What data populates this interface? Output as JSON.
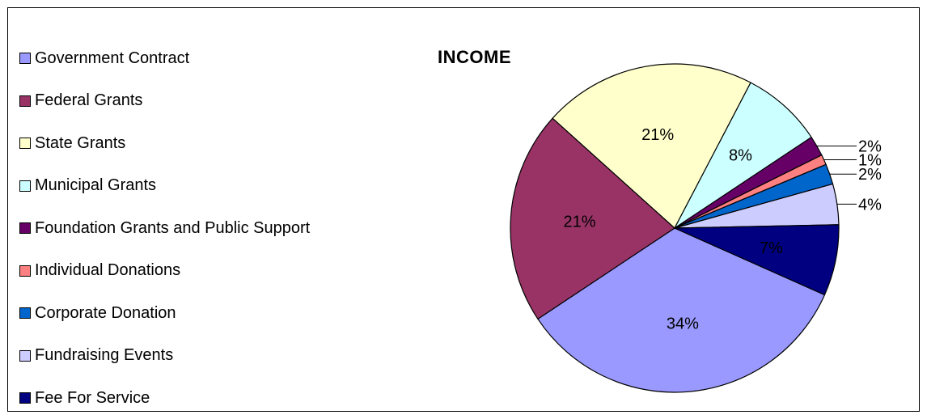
{
  "chart_data": {
    "type": "pie",
    "title": "INCOME",
    "legend_position": "left",
    "slices": [
      {
        "name": "Government Contract",
        "label": "34%",
        "value": 34,
        "color": "#9999ff"
      },
      {
        "name": "Federal Grants",
        "label": "21%",
        "value": 21,
        "color": "#993366"
      },
      {
        "name": "State Grants",
        "label": "21%",
        "value": 21,
        "color": "#ffffcc"
      },
      {
        "name": "Municipal Grants",
        "label": "8%",
        "value": 8,
        "color": "#ccffff"
      },
      {
        "name": "Foundation Grants and Public Support",
        "label": "2%",
        "value": 2,
        "color": "#660066"
      },
      {
        "name": "Individual Donations",
        "label": "1%",
        "value": 1,
        "color": "#ff8080"
      },
      {
        "name": "Corporate Donation",
        "label": "2%",
        "value": 2,
        "color": "#0066cc"
      },
      {
        "name": "Fundraising Events",
        "label": "4%",
        "value": 4,
        "color": "#ccccff"
      },
      {
        "name": "Fee For Service",
        "label": "7%",
        "value": 7,
        "color": "#000080"
      }
    ]
  }
}
